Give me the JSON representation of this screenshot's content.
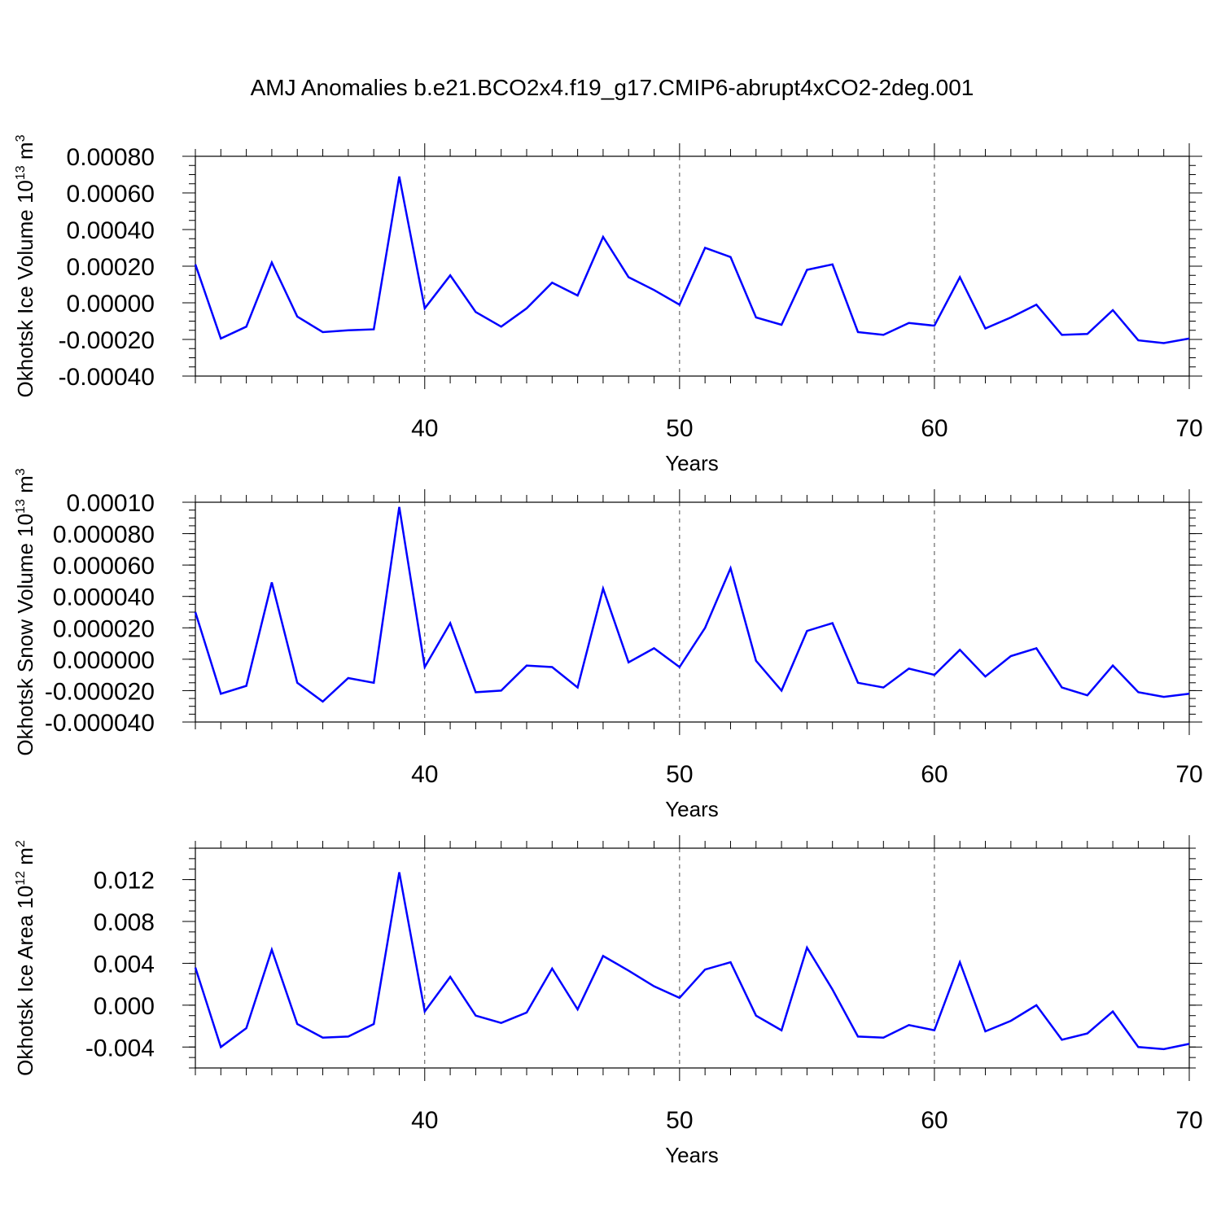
{
  "title": "AMJ Anomalies b.e21.BCO2x4.f19_g17.CMIP6-abrupt4xCO2-2deg.001",
  "colors": {
    "line": "#0000ff",
    "axes": "#000000",
    "background": "#ffffff"
  },
  "chart_data": [
    {
      "type": "line",
      "xlabel": "Years",
      "ylabel": {
        "text": "Okhotsk Ice Volume 10",
        "sup": "13",
        "unit": " m",
        "unit_sup": "3"
      },
      "xlim": [
        31,
        70
      ],
      "ylim": [
        -0.0004,
        0.0008
      ],
      "x_ticks": [
        40,
        50,
        60,
        70
      ],
      "y_ticks": [
        {
          "v": 0.0008,
          "label": "0.00080"
        },
        {
          "v": 0.0006,
          "label": "0.00060"
        },
        {
          "v": 0.0004,
          "label": "0.00040"
        },
        {
          "v": 0.0002,
          "label": "0.00020"
        },
        {
          "v": 0.0,
          "label": "0.00000"
        },
        {
          "v": -0.0002,
          "label": "-0.00020"
        },
        {
          "v": -0.0004,
          "label": "-0.00040"
        }
      ],
      "y_minor_step": 5e-05,
      "grid": "vertical dashed at major x ticks",
      "x": [
        31,
        32,
        33,
        34,
        35,
        36,
        37,
        38,
        39,
        40,
        41,
        42,
        43,
        44,
        45,
        46,
        47,
        48,
        49,
        50,
        51,
        52,
        53,
        54,
        55,
        56,
        57,
        58,
        59,
        60,
        61,
        62,
        63,
        64,
        65,
        66,
        67,
        68,
        69,
        70
      ],
      "y": [
        0.00021,
        -0.000195,
        -0.00013,
        0.00022,
        -7.5e-05,
        -0.00016,
        -0.00015,
        -0.000145,
        0.00069,
        -3e-05,
        0.00015,
        -5e-05,
        -0.00013,
        -3e-05,
        0.00011,
        4e-05,
        0.00036,
        0.00014,
        7e-05,
        -1e-05,
        0.0003,
        0.00025,
        -8e-05,
        -0.00012,
        0.00018,
        0.00021,
        -0.00016,
        -0.000175,
        -0.00011,
        -0.000125,
        0.00014,
        -0.00014,
        -8e-05,
        -1e-05,
        -0.000175,
        -0.00017,
        -4e-05,
        -0.000205,
        -0.00022,
        -0.000195
      ]
    },
    {
      "type": "line",
      "xlabel": "Years",
      "ylabel": {
        "text": "Okhotsk Snow Volume 10",
        "sup": "13",
        "unit": " m",
        "unit_sup": "3"
      },
      "xlim": [
        31,
        70
      ],
      "ylim": [
        -4e-05,
        0.0001
      ],
      "x_ticks": [
        40,
        50,
        60,
        70
      ],
      "y_ticks": [
        {
          "v": 0.0001,
          "label": "0.00010"
        },
        {
          "v": 8e-05,
          "label": "0.000080"
        },
        {
          "v": 6e-05,
          "label": "0.000060"
        },
        {
          "v": 4e-05,
          "label": "0.000040"
        },
        {
          "v": 2e-05,
          "label": "0.000020"
        },
        {
          "v": 0.0,
          "label": "0.000000"
        },
        {
          "v": -2e-05,
          "label": "-0.000020"
        },
        {
          "v": -4e-05,
          "label": "-0.000040"
        }
      ],
      "y_minor_step": 5e-06,
      "grid": "vertical dashed at major x ticks",
      "x": [
        31,
        32,
        33,
        34,
        35,
        36,
        37,
        38,
        39,
        40,
        41,
        42,
        43,
        44,
        45,
        46,
        47,
        48,
        49,
        50,
        51,
        52,
        53,
        54,
        55,
        56,
        57,
        58,
        59,
        60,
        61,
        62,
        63,
        64,
        65,
        66,
        67,
        68,
        69,
        70
      ],
      "y": [
        3e-05,
        -2.2e-05,
        -1.7e-05,
        4.9e-05,
        -1.5e-05,
        -2.7e-05,
        -1.2e-05,
        -1.5e-05,
        9.7e-05,
        -5e-06,
        2.3e-05,
        -2.1e-05,
        -2e-05,
        -4e-06,
        -5e-06,
        -1.8e-05,
        4.5e-05,
        -2e-06,
        7e-06,
        -5e-06,
        2e-05,
        5.8e-05,
        -1e-06,
        -2e-05,
        1.8e-05,
        2.3e-05,
        -1.5e-05,
        -1.8e-05,
        -6e-06,
        -1e-05,
        6e-06,
        -1.1e-05,
        2e-06,
        7e-06,
        -1.8e-05,
        -2.3e-05,
        -4e-06,
        -2.1e-05,
        -2.4e-05,
        -2.2e-05
      ]
    },
    {
      "type": "line",
      "xlabel": "Years",
      "ylabel": {
        "text": "Okhotsk Ice Area 10",
        "sup": "12",
        "unit": " m",
        "unit_sup": "2"
      },
      "xlim": [
        31,
        70
      ],
      "ylim": [
        -0.006,
        0.015
      ],
      "x_ticks": [
        40,
        50,
        60,
        70
      ],
      "y_ticks": [
        {
          "v": 0.012,
          "label": "0.012"
        },
        {
          "v": 0.008,
          "label": "0.008"
        },
        {
          "v": 0.004,
          "label": "0.004"
        },
        {
          "v": 0.0,
          "label": "0.000"
        },
        {
          "v": -0.004,
          "label": "-0.004"
        }
      ],
      "y_minor_step": 0.001,
      "grid": "vertical dashed at major x ticks",
      "x": [
        31,
        32,
        33,
        34,
        35,
        36,
        37,
        38,
        39,
        40,
        41,
        42,
        43,
        44,
        45,
        46,
        47,
        48,
        49,
        50,
        51,
        52,
        53,
        54,
        55,
        56,
        57,
        58,
        59,
        60,
        61,
        62,
        63,
        64,
        65,
        66,
        67,
        68,
        69,
        70
      ],
      "y": [
        0.0036,
        -0.004,
        -0.0022,
        0.0053,
        -0.0018,
        -0.0031,
        -0.003,
        -0.0018,
        0.0127,
        -0.0006,
        0.0027,
        -0.001,
        -0.0017,
        -0.0007,
        0.0035,
        -0.0004,
        0.0047,
        0.0033,
        0.0018,
        0.0007,
        0.0034,
        0.0041,
        -0.001,
        -0.0024,
        0.0055,
        0.0015,
        -0.003,
        -0.0031,
        -0.0019,
        -0.0024,
        0.0041,
        -0.0025,
        -0.0015,
        0.0,
        -0.0033,
        -0.0027,
        -0.0006,
        -0.004,
        -0.0042,
        -0.0037
      ]
    }
  ]
}
